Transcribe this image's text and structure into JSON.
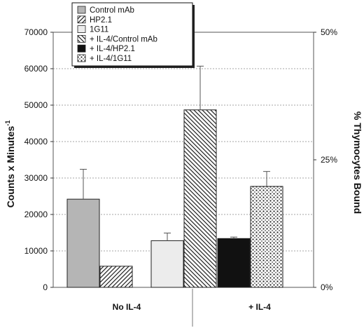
{
  "chart_data": {
    "type": "bar",
    "categories": [
      "No IL-4",
      "+ IL-4"
    ],
    "series": [
      {
        "name": "Control mAb",
        "category": "No IL-4",
        "value": 24200,
        "error": 8200,
        "pattern": "gray"
      },
      {
        "name": "HP2.1",
        "category": "No IL-4",
        "value": 5800,
        "error": 0,
        "pattern": "diag-right"
      },
      {
        "name": "1G11",
        "category": "No IL-4",
        "value": 12800,
        "error": 2100,
        "pattern": "light"
      },
      {
        "name": "+ IL-4/Control mAb",
        "category": "+ IL-4",
        "value": 48700,
        "error": 12000,
        "pattern": "diag-left"
      },
      {
        "name": "+ IL-4/HP2.1",
        "category": "+ IL-4",
        "value": 13400,
        "error": 400,
        "pattern": "black"
      },
      {
        "name": "+ IL-4/1G11",
        "category": "+ IL-4",
        "value": 27700,
        "error": 4100,
        "pattern": "dots"
      }
    ],
    "ylabel_left": "Counts x Minutes",
    "ylabel_left_sup": "-1",
    "ylabel_right": "% Thymocytes Bound",
    "ylim": [
      0,
      70000
    ],
    "yticks_left": [
      "0",
      "10000",
      "20000",
      "30000",
      "40000",
      "50000",
      "60000",
      "70000"
    ],
    "yticks_right": [
      {
        "label": "0%",
        "value": 0
      },
      {
        "label": "25%",
        "value": 35000
      },
      {
        "label": "50%",
        "value": 70000
      }
    ],
    "grid": true,
    "legend_position": "top-left"
  }
}
